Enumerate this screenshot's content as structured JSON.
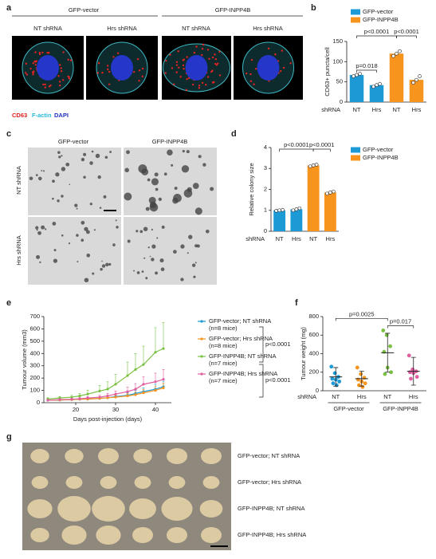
{
  "panels": [
    "a",
    "b",
    "c",
    "d",
    "e",
    "f",
    "g"
  ],
  "panel_a": {
    "groups": [
      "GFP-vector",
      "GFP-INPP4B"
    ],
    "conditions": [
      "NT shRNA",
      "Hrs shRNA",
      "NT shRNA",
      "Hrs shRNA"
    ],
    "stains": [
      "CD63",
      "F-actin",
      "DAPI"
    ]
  },
  "panel_c": {
    "columns": [
      "GFP-vector",
      "GFP-INPP4B"
    ],
    "rows": [
      "NT shRNA",
      "Hrs shRNA"
    ]
  },
  "panel_g": {
    "rows": [
      "GFP-vector; NT shRNA",
      "GFP-vector; Hrs shRNA",
      "GFP-INPP4B; NT shRNA",
      "GFP-INPP4B; Hrs shRNA"
    ]
  },
  "chart_data": [
    {
      "type": "bar",
      "ylabel": "CD63+ puncta/cell",
      "row_label": "shRNA",
      "categories": [
        "NT",
        "Hrs",
        "NT",
        "Hrs"
      ],
      "values": [
        67,
        42,
        120,
        55
      ],
      "points": [
        [
          64,
          67,
          70
        ],
        [
          38,
          42,
          45
        ],
        [
          114,
          120,
          126
        ],
        [
          48,
          55,
          64
        ]
      ],
      "colors": [
        "#1b9ad6",
        "#1b9ad6",
        "#f7941d",
        "#f7941d"
      ],
      "legend": [
        {
          "name": "GFP-vector",
          "color": "#1b9ad6"
        },
        {
          "name": "GFP-INPP4B",
          "color": "#f7941d"
        }
      ],
      "annotations": [
        "p=0.018",
        "p<0.0001",
        "p<0.0001"
      ],
      "ylim": [
        0,
        150
      ],
      "yticks": [
        0,
        50,
        100,
        150
      ]
    },
    {
      "type": "bar",
      "ylabel": "Relative colony size",
      "row_label": "shRNA",
      "categories": [
        "NT",
        "Hrs",
        "NT",
        "Hrs"
      ],
      "values": [
        1.0,
        1.05,
        3.15,
        1.85
      ],
      "points": [
        [
          0.98,
          1.0,
          1.02
        ],
        [
          1.0,
          1.05,
          1.1
        ],
        [
          3.1,
          3.15,
          3.18
        ],
        [
          1.8,
          1.85,
          1.9
        ]
      ],
      "colors": [
        "#1b9ad6",
        "#1b9ad6",
        "#f7941d",
        "#f7941d"
      ],
      "legend": [
        {
          "name": "GFP-vector",
          "color": "#1b9ad6"
        },
        {
          "name": "GFP-INPP4B",
          "color": "#f7941d"
        }
      ],
      "annotations": [
        "p<0.0001",
        "p<0.0001"
      ],
      "ylim": [
        0,
        4
      ],
      "yticks": [
        0,
        1,
        2,
        3,
        4
      ]
    },
    {
      "type": "line",
      "ylabel": "Tumour volume (mm3)",
      "xlabel": "Days post-injection (days)",
      "x": [
        13,
        16,
        19,
        21,
        23,
        26,
        28,
        30,
        33,
        35,
        37,
        40,
        42
      ],
      "series": [
        {
          "name": "GFP-vector; NT shRNA",
          "note": "(n=8 mice)",
          "color": "#1b9ad6",
          "values": [
            20,
            22,
            25,
            28,
            30,
            35,
            40,
            50,
            60,
            75,
            90,
            110,
            130
          ],
          "errors": [
            5,
            6,
            7,
            8,
            9,
            10,
            12,
            15,
            20,
            25,
            30,
            40,
            45
          ]
        },
        {
          "name": "GFP-vector; Hrs shRNA",
          "note": "(n=8 mice)",
          "color": "#f7941d",
          "values": [
            20,
            22,
            25,
            28,
            30,
            35,
            40,
            45,
            55,
            65,
            80,
            100,
            120
          ],
          "errors": [
            5,
            6,
            7,
            8,
            9,
            10,
            12,
            15,
            18,
            22,
            28,
            35,
            40
          ]
        },
        {
          "name": "GFP-INPP4B; NT shRNA",
          "note": "(n=7 mice)",
          "color": "#7ac143",
          "values": [
            30,
            38,
            45,
            55,
            70,
            95,
            110,
            150,
            220,
            270,
            310,
            410,
            440
          ],
          "errors": [
            10,
            12,
            15,
            20,
            30,
            45,
            60,
            80,
            110,
            130,
            150,
            200,
            210
          ]
        },
        {
          "name": "GFP-INPP4B; Hrs shRNA",
          "note": "(n=7 mice)",
          "color": "#e05fa0",
          "values": [
            20,
            25,
            28,
            32,
            38,
            45,
            55,
            70,
            90,
            110,
            150,
            170,
            190
          ],
          "errors": [
            6,
            7,
            8,
            10,
            12,
            15,
            20,
            25,
            35,
            45,
            60,
            70,
            80
          ]
        }
      ],
      "annotations": [
        "p<0.0001",
        "p<0.0001"
      ],
      "xlim": [
        12,
        44
      ],
      "xticks": [
        20,
        30,
        40
      ],
      "ylim": [
        0,
        700
      ],
      "yticks": [
        0,
        100,
        200,
        300,
        400,
        500,
        600,
        700
      ]
    },
    {
      "type": "dot",
      "ylabel": "Tumour weight (mg)",
      "row_label": "shRNA",
      "categories": [
        "NT",
        "Hrs",
        "NT",
        "Hrs"
      ],
      "groups": [
        "GFP-vector",
        "GFP-INPP4B"
      ],
      "colors": [
        "#1b9ad6",
        "#f7941d",
        "#7ac143",
        "#e05fa0"
      ],
      "points": [
        [
          260,
          190,
          150,
          130,
          120,
          100,
          80,
          60
        ],
        [
          250,
          180,
          140,
          120,
          100,
          80,
          60,
          40
        ],
        [
          650,
          600,
          480,
          420,
          250,
          200,
          180
        ],
        [
          380,
          230,
          210,
          200,
          190,
          150,
          130
        ]
      ],
      "means": [
        150,
        130,
        410,
        210
      ],
      "sd": [
        100,
        80,
        210,
        150
      ],
      "annotations": [
        "p=0.0025",
        "p=0.017"
      ],
      "ylim": [
        0,
        800
      ],
      "yticks": [
        0,
        200,
        400,
        600,
        800
      ]
    }
  ]
}
